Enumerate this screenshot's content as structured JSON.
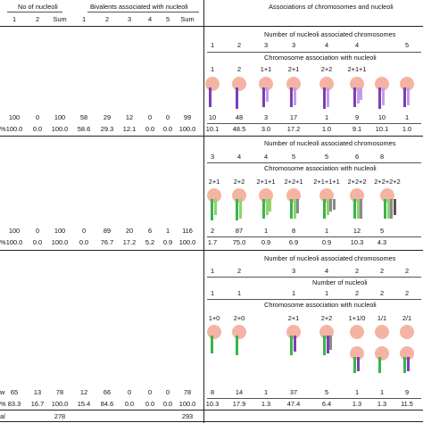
{
  "colors": {
    "nucleolus": "#f5b4a3",
    "green": "#39b54a",
    "lightgreen": "#8ed36b",
    "purple": "#7a3fb8",
    "lavender": "#c79be8",
    "gray": "#8a8a8a",
    "darkgray": "#555555"
  },
  "header": {
    "no_of_nucleoli": "No of nucleoli",
    "bivalents": "Bivalents associated with nucleoli",
    "associations": "Associations of chromosomes and nucleoli",
    "left_cols": [
      "1",
      "2",
      "Sum"
    ],
    "biv_cols": [
      "1",
      "2",
      "3",
      "4",
      "5",
      "Sum"
    ]
  },
  "labels": {
    "num_nucleoli_assoc": "Number of nucleoli associated chromosomes",
    "chrom_assoc": "Chromosome association with nucleoli",
    "num_nucleoli": "Number of nucleoli"
  },
  "section1": {
    "assoc_nums": [
      "1",
      "2",
      "3",
      "3",
      "4",
      "4",
      "5"
    ],
    "combos": [
      "1",
      "2",
      "1+1",
      "2+1",
      "2+2",
      "2+1+1"
    ],
    "row_n": {
      "prefix": "",
      "left": [
        "100",
        "0",
        "100"
      ],
      "biv": [
        "58",
        "29",
        "12",
        "0",
        "0",
        "99"
      ],
      "assoc": [
        "10",
        "48",
        "3",
        "17",
        "1",
        "9",
        "10",
        "1"
      ]
    },
    "row_pct": {
      "prefix": "%",
      "left": [
        "100.0",
        "0.0",
        "100.0"
      ],
      "biv": [
        "58.6",
        "29.3",
        "12.1",
        "0.0",
        "0.0",
        "100.0"
      ],
      "assoc": [
        "10.1",
        "48.5",
        "3.0",
        "17.2",
        "1.0",
        "9.1",
        "10.1",
        "1.0"
      ]
    }
  },
  "section2": {
    "assoc_nums": [
      "3",
      "4",
      "4",
      "5",
      "5",
      "6",
      "8"
    ],
    "combos": [
      "2+1",
      "2+2",
      "2+1+1",
      "2+2+1",
      "2+1+1+1",
      "2+2+2",
      "2+2+2+2"
    ],
    "row_n": {
      "prefix": "",
      "left": [
        "100",
        "0",
        "100"
      ],
      "biv": [
        "0",
        "89",
        "20",
        "6",
        "1",
        "116"
      ],
      "assoc": [
        "2",
        "87",
        "1",
        "8",
        "1",
        "12",
        "5"
      ]
    },
    "row_pct": {
      "prefix": "%",
      "left": [
        "100.0",
        "0.0",
        "100.0"
      ],
      "biv": [
        "0.0",
        "76.7",
        "17.2",
        "5.2",
        "0.9",
        "100.0"
      ],
      "assoc": [
        "1.7",
        "75.0",
        "0.9",
        "6.9",
        "0.9",
        "10.3",
        "4.3"
      ]
    }
  },
  "section3": {
    "assoc_nums": [
      "1",
      "2",
      "3",
      "4",
      "2",
      "2",
      "2"
    ],
    "nucleoli_nums": [
      "1",
      "1",
      "1",
      "1",
      "2",
      "2",
      "2"
    ],
    "combos": [
      "1+0",
      "2+0",
      "2+1",
      "2+2",
      "1+1/0",
      "1/1",
      "2/1"
    ],
    "row_n": {
      "prefix": "w",
      "left": [
        "65",
        "13",
        "78"
      ],
      "biv": [
        "12",
        "66",
        "0",
        "0",
        "0",
        "78"
      ],
      "assoc": [
        "8",
        "14",
        "1",
        "37",
        "5",
        "1",
        "1",
        "9"
      ]
    },
    "row_pct": {
      "prefix": "%",
      "left": [
        "83.3",
        "16.7",
        "100.0"
      ],
      "biv": [
        "15.4",
        "84.6",
        "0.0",
        "0.0",
        "0.0",
        "100.0"
      ],
      "assoc": [
        "10.3",
        "17.9",
        "1.3",
        "47.4",
        "6.4",
        "1.3",
        "1.3",
        "11.5"
      ]
    }
  },
  "totals": {
    "prefix": "al",
    "left_sum": "278",
    "biv_sum": "293"
  }
}
